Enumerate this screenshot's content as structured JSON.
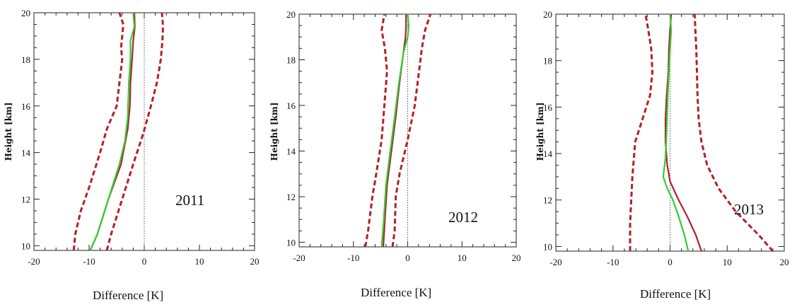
{
  "chart_data": [
    {
      "type": "line",
      "title": "",
      "annotation": "2011",
      "xlabel": "Difference [K]",
      "ylabel": "Height [km]",
      "xlim": [
        -20,
        20
      ],
      "ylim": [
        9.8,
        20
      ],
      "xticks": [
        -20,
        -10,
        0,
        10,
        20
      ],
      "yticks": [
        10,
        12,
        14,
        16,
        18,
        20
      ],
      "zero_line": "dotted",
      "series": [
        {
          "color": "#b2202a",
          "style": "dashed",
          "x": [
            -12.8,
            -12.5,
            -11.5,
            -10,
            -8,
            -6.8,
            -5,
            -4.5,
            -4,
            -4.2,
            -4,
            -3.8,
            -4.5
          ],
          "y": [
            9.8,
            10.5,
            11.5,
            12.5,
            14,
            15,
            16,
            17,
            18,
            18.5,
            19,
            19.5,
            20
          ]
        },
        {
          "color": "#b2202a",
          "style": "solid",
          "x": [
            -9.8,
            -8.5,
            -6.5,
            -4.2,
            -3,
            -2.6,
            -2.5,
            -2.2,
            -2,
            -1.7,
            -1.8
          ],
          "y": [
            9.8,
            10.5,
            12,
            13.5,
            15,
            16,
            17,
            18,
            18.8,
            19.4,
            20
          ]
        },
        {
          "color": "#33cc33",
          "style": "solid",
          "x": [
            -9.8,
            -8.5,
            -6.5,
            -4.5,
            -3.5,
            -3,
            -2.8,
            -2.5,
            -2.5,
            -1.8,
            -2
          ],
          "y": [
            9.8,
            10.5,
            12,
            13.5,
            14.5,
            15.5,
            17,
            18,
            18.8,
            19.4,
            20
          ]
        },
        {
          "color": "#b2202a",
          "style": "dashed",
          "x": [
            -6.8,
            -6,
            -4,
            -2,
            -0.2,
            1.2,
            2.3,
            3,
            3.3,
            3.4,
            3.2
          ],
          "y": [
            9.8,
            10.5,
            12,
            13.5,
            14.8,
            16,
            17,
            18,
            18.8,
            19.4,
            20
          ]
        }
      ]
    },
    {
      "type": "line",
      "title": "",
      "annotation": "2012",
      "xlabel": "Difference [K]",
      "ylabel": "Height [km]",
      "xlim": [
        -20,
        20
      ],
      "ylim": [
        9.8,
        20
      ],
      "xticks": [
        -20,
        -10,
        0,
        10,
        20
      ],
      "yticks": [
        10,
        12,
        14,
        16,
        18,
        20
      ],
      "zero_line": "dotted",
      "series": [
        {
          "color": "#b2202a",
          "style": "dashed",
          "x": [
            -7.8,
            -7.3,
            -6.5,
            -5.8,
            -4.8,
            -4.3,
            -3.8,
            -4.2,
            -4.8,
            -4.3
          ],
          "y": [
            9.8,
            10.5,
            12,
            13,
            14.5,
            16,
            17.5,
            18.5,
            19.3,
            20
          ]
        },
        {
          "color": "#b2202a",
          "style": "solid",
          "x": [
            -4.5,
            -4.2,
            -3.8,
            -3,
            -2.2,
            -1.5,
            -0.8,
            -0.4,
            -0.3,
            -0.3
          ],
          "y": [
            9.8,
            11,
            12.5,
            14,
            15.5,
            17,
            18.3,
            19,
            19.5,
            20
          ]
        },
        {
          "color": "#33cc33",
          "style": "solid",
          "x": [
            -4.8,
            -4.4,
            -4,
            -3.2,
            -2.4,
            -1.6,
            -0.8,
            0,
            0.2,
            0
          ],
          "y": [
            9.8,
            11,
            12.5,
            14,
            15.5,
            17,
            18.3,
            19,
            19.5,
            20
          ]
        },
        {
          "color": "#b2202a",
          "style": "dashed",
          "x": [
            -2.8,
            -2.4,
            -2.2,
            -1.5,
            0,
            1.3,
            2.1,
            2.6,
            3.2,
            4.2
          ],
          "y": [
            9.8,
            10.5,
            12,
            13,
            14.5,
            16,
            17.5,
            18.5,
            19.3,
            20
          ]
        }
      ]
    },
    {
      "type": "line",
      "title": "",
      "annotation": "2013",
      "xlabel": "Difference [K]",
      "ylabel": "Height [km]",
      "xlim": [
        -20,
        20
      ],
      "ylim": [
        9.8,
        20
      ],
      "xticks": [
        -20,
        -10,
        0,
        10,
        20
      ],
      "yticks": [
        10,
        12,
        14,
        16,
        18,
        20
      ],
      "zero_line": "dotted",
      "series": [
        {
          "color": "#b2202a",
          "style": "dashed",
          "x": [
            -7,
            -7,
            -6.8,
            -6.6,
            -6.1,
            -4.8,
            -3.5,
            -3.1,
            -3.3,
            -3.8,
            -4.3
          ],
          "y": [
            9.8,
            11,
            12,
            13,
            14.5,
            15.5,
            16.5,
            17.5,
            18.5,
            19.3,
            20
          ]
        },
        {
          "color": "#b2202a",
          "style": "solid",
          "x": [
            5.5,
            4.5,
            3,
            1.5,
            0,
            -0.5,
            -0.8,
            -0.8,
            -0.6,
            -0.3,
            -0.2,
            0,
            0.2
          ],
          "y": [
            9.8,
            10.5,
            11.3,
            12,
            12.8,
            13.5,
            14.5,
            15.5,
            16.5,
            17.5,
            18.5,
            19.3,
            20
          ]
        },
        {
          "color": "#33cc33",
          "style": "solid",
          "x": [
            3.2,
            2.5,
            1.5,
            0.5,
            -0.5,
            -1.2,
            -0.8,
            -0.6,
            -0.4,
            -0.2,
            0,
            0.2,
            0
          ],
          "y": [
            9.8,
            10.5,
            11.3,
            12,
            12.5,
            13,
            13.8,
            15,
            16.5,
            17.5,
            18.5,
            19.3,
            20
          ]
        },
        {
          "color": "#b2202a",
          "style": "dashed",
          "x": [
            18,
            15.5,
            11.5,
            8.5,
            6.5,
            5.5,
            5,
            4.8,
            4.7,
            4.6,
            4.3
          ],
          "y": [
            9.8,
            10.5,
            11.5,
            12.5,
            13.5,
            14.5,
            15.5,
            16.5,
            17.5,
            18.5,
            20
          ]
        }
      ]
    }
  ]
}
